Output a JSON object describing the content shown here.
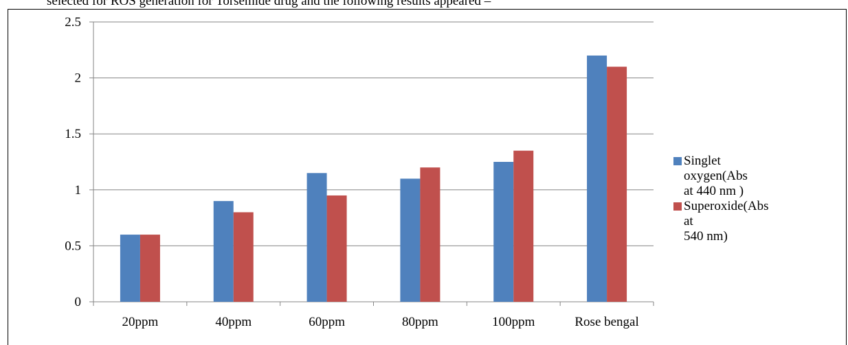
{
  "caption": "selected for ROS generation for Torsemide drug and the following results appeared –",
  "chart_data": {
    "type": "bar",
    "categories": [
      "20ppm",
      "40ppm",
      "60ppm",
      "80ppm",
      "100ppm",
      "Rose bengal"
    ],
    "series": [
      {
        "name": "Singlet oxygen(Abs at 440 nm )",
        "color": "#4F81BD",
        "values": [
          0.6,
          0.9,
          1.15,
          1.1,
          1.25,
          2.2
        ]
      },
      {
        "name": "Superoxide(Abs at 540 nm)",
        "color": "#C0504D",
        "values": [
          0.6,
          0.8,
          0.95,
          1.2,
          1.35,
          2.1
        ]
      }
    ],
    "yticks": [
      "0",
      "0.5",
      "1",
      "1.5",
      "2",
      "2.5"
    ],
    "ylim": [
      0,
      2.5
    ],
    "grid": true,
    "legend": "right",
    "title": "",
    "xlabel": "",
    "ylabel": ""
  },
  "legend": {
    "items": [
      {
        "lines": [
          "Singlet oxygen(Abs",
          "at 440 nm )"
        ],
        "color": "#4F81BD"
      },
      {
        "lines": [
          "Superoxide(Abs at",
          "540 nm)"
        ],
        "color": "#C0504D"
      }
    ]
  }
}
